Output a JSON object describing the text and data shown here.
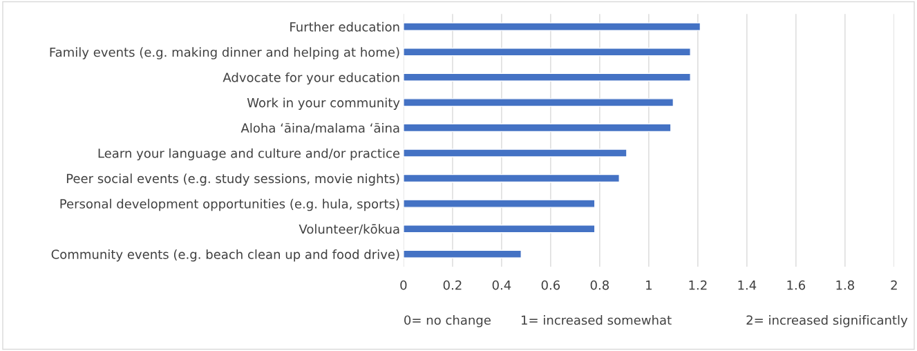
{
  "chart_data": {
    "type": "bar",
    "orientation": "horizontal",
    "categories": [
      "Further education",
      "Family events (e.g. making dinner and helping at home)",
      "Advocate for your education",
      "Work in your community",
      "Aloha ‘āina/malama ‘āina",
      "Learn your language and culture and/or practice",
      "Peer social events (e.g. study sessions, movie nights)",
      "Personal development opportunities (e.g. hula, sports)",
      "Volunteer/kōkua",
      "Community events (e.g. beach clean up and food drive)"
    ],
    "values": [
      1.21,
      1.17,
      1.17,
      1.1,
      1.09,
      0.91,
      0.88,
      0.78,
      0.78,
      0.48
    ],
    "color": "#4472c4",
    "xlim": [
      0,
      2
    ],
    "xticks": [
      0,
      0.2,
      0.4,
      0.6,
      0.8,
      1,
      1.2,
      1.4,
      1.6,
      1.8,
      2
    ],
    "grid": "x",
    "annotations": [
      "0= no change",
      "1= increased somewhat",
      "2= increased significantly"
    ]
  }
}
